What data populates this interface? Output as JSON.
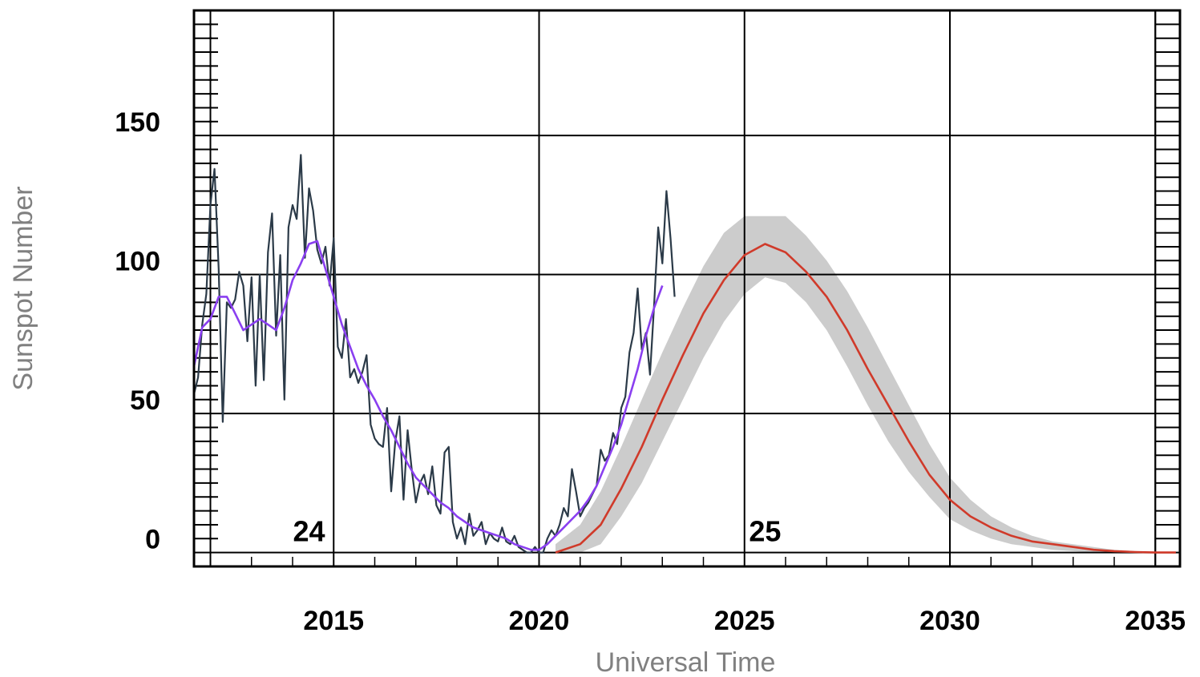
{
  "chart_data": {
    "type": "line",
    "title": "",
    "xlabel": "Universal Time",
    "ylabel": "Sunspot Number",
    "xlim": [
      2011.6,
      2035.6
    ],
    "ylim": [
      -5,
      195
    ],
    "x_ticks": [
      2015,
      2020,
      2025,
      2030,
      2035
    ],
    "y_ticks": [
      0,
      50,
      100,
      150
    ],
    "grid": true,
    "cycle_labels": [
      {
        "text": "24",
        "x": 2014.4,
        "y": 7
      },
      {
        "text": "25",
        "x": 2025.5,
        "y": 7
      }
    ],
    "colors": {
      "observed": "#2b3a48",
      "smoothed": "#8a3ff0",
      "predicted": "#d03a2a",
      "band": "#cccccc",
      "grid": "#000000"
    },
    "series": [
      {
        "key": "observed",
        "x": [
          2011.6,
          2011.7,
          2011.8,
          2011.9,
          2012.0,
          2012.1,
          2012.2,
          2012.3,
          2012.4,
          2012.5,
          2012.6,
          2012.7,
          2012.8,
          2012.9,
          2013.0,
          2013.1,
          2013.2,
          2013.3,
          2013.4,
          2013.5,
          2013.6,
          2013.7,
          2013.8,
          2013.9,
          2014.0,
          2014.1,
          2014.2,
          2014.3,
          2014.4,
          2014.5,
          2014.6,
          2014.7,
          2014.8,
          2014.9,
          2015.0,
          2015.1,
          2015.2,
          2015.3,
          2015.4,
          2015.5,
          2015.6,
          2015.7,
          2015.8,
          2015.9,
          2016.0,
          2016.1,
          2016.2,
          2016.3,
          2016.4,
          2016.5,
          2016.6,
          2016.7,
          2016.8,
          2016.9,
          2017.0,
          2017.1,
          2017.2,
          2017.3,
          2017.4,
          2017.5,
          2017.6,
          2017.7,
          2017.8,
          2017.9,
          2018.0,
          2018.1,
          2018.2,
          2018.3,
          2018.4,
          2018.5,
          2018.6,
          2018.7,
          2018.8,
          2018.9,
          2019.0,
          2019.1,
          2019.2,
          2019.3,
          2019.4,
          2019.5,
          2019.6,
          2019.7,
          2019.8,
          2019.9,
          2020.0,
          2020.1,
          2020.2,
          2020.3,
          2020.4,
          2020.5,
          2020.6,
          2020.7,
          2020.8,
          2020.9,
          2021.0,
          2021.1,
          2021.2,
          2021.3,
          2021.4,
          2021.5,
          2021.6,
          2021.7,
          2021.8,
          2021.9,
          2022.0,
          2022.1,
          2022.2,
          2022.3,
          2022.4,
          2022.5,
          2022.6,
          2022.7,
          2022.8,
          2022.9,
          2023.0,
          2023.1,
          2023.2,
          2023.3
        ],
        "y": [
          57,
          63,
          82,
          93,
          125,
          138,
          102,
          47,
          90,
          88,
          91,
          101,
          96,
          76,
          99,
          60,
          100,
          62,
          108,
          122,
          78,
          107,
          55,
          117,
          125,
          120,
          143,
          106,
          131,
          123,
          109,
          104,
          110,
          96,
          113,
          74,
          70,
          84,
          63,
          66,
          61,
          65,
          71,
          46,
          41,
          39,
          38,
          52,
          22,
          40,
          49,
          19,
          44,
          30,
          18,
          25,
          28,
          21,
          31,
          17,
          14,
          36,
          38,
          11,
          5,
          9,
          3,
          14,
          6,
          8,
          11,
          3,
          7,
          5,
          4,
          9,
          4,
          3,
          6,
          2,
          1,
          0,
          0,
          2,
          0,
          0,
          5,
          8,
          6,
          10,
          16,
          13,
          30,
          22,
          13,
          16,
          18,
          21,
          24,
          37,
          33,
          35,
          43,
          39,
          52,
          56,
          72,
          79,
          95,
          73,
          79,
          64,
          89,
          117,
          104,
          130,
          113,
          92
        ]
      },
      {
        "key": "smoothed",
        "x": [
          2011.6,
          2011.8,
          2012.0,
          2012.2,
          2012.4,
          2012.6,
          2012.8,
          2013.0,
          2013.2,
          2013.4,
          2013.6,
          2013.8,
          2014.0,
          2014.2,
          2014.4,
          2014.6,
          2014.8,
          2015.0,
          2015.2,
          2015.4,
          2015.6,
          2015.8,
          2016.0,
          2016.2,
          2016.4,
          2016.6,
          2016.8,
          2017.0,
          2017.2,
          2017.4,
          2017.6,
          2017.8,
          2018.0,
          2018.2,
          2018.4,
          2018.6,
          2018.8,
          2019.0,
          2019.2,
          2019.4,
          2019.6,
          2019.8,
          2020.0,
          2020.2,
          2020.4,
          2020.6,
          2020.8,
          2021.0,
          2021.2,
          2021.4,
          2021.6,
          2021.8,
          2022.0,
          2022.2,
          2022.4,
          2022.6,
          2022.8,
          2023.0
        ],
        "y": [
          67,
          81,
          84,
          92,
          92,
          86,
          80,
          82,
          84,
          82,
          80,
          88,
          98,
          104,
          111,
          112,
          102,
          92,
          82,
          74,
          66,
          60,
          55,
          49,
          44,
          38,
          32,
          27,
          24,
          21,
          18,
          16,
          13,
          11,
          9,
          8,
          7,
          6,
          5,
          3,
          2,
          1,
          1,
          3,
          6,
          9,
          12,
          15,
          19,
          24,
          31,
          38,
          46,
          56,
          66,
          78,
          88,
          96
        ]
      },
      {
        "key": "predicted",
        "x": [
          2020.4,
          2021.0,
          2021.5,
          2022.0,
          2022.5,
          2023.0,
          2023.5,
          2024.0,
          2024.5,
          2025.0,
          2025.5,
          2026.0,
          2026.5,
          2027.0,
          2027.5,
          2028.0,
          2028.5,
          2029.0,
          2029.5,
          2030.0,
          2030.5,
          2031.0,
          2031.5,
          2032.0,
          2032.5,
          2033.0,
          2033.5,
          2034.0,
          2034.5,
          2035.0,
          2035.5
        ],
        "y": [
          0,
          3,
          10,
          23,
          38,
          55,
          71,
          86,
          98,
          107,
          111,
          108,
          101,
          92,
          80,
          66,
          53,
          40,
          28,
          19,
          13,
          9,
          6,
          4,
          3,
          2,
          1,
          0.5,
          0.2,
          0,
          0
        ]
      }
    ],
    "band": {
      "x": [
        2020.4,
        2021.0,
        2021.5,
        2022.0,
        2022.5,
        2023.0,
        2023.5,
        2024.0,
        2024.5,
        2025.0,
        2025.5,
        2026.0,
        2026.5,
        2027.0,
        2027.5,
        2028.0,
        2028.5,
        2029.0,
        2029.5,
        2030.0,
        2030.5,
        2031.0,
        2031.5,
        2032.0,
        2032.5,
        2033.0,
        2033.5,
        2034.0,
        2034.5,
        2035.0,
        2035.5
      ],
      "upper": [
        3,
        10,
        22,
        38,
        55,
        72,
        88,
        103,
        115,
        121,
        121,
        121,
        114,
        105,
        94,
        81,
        67,
        53,
        39,
        27,
        19,
        13,
        9,
        6,
        4,
        3,
        2,
        1,
        0.5,
        0,
        0
      ],
      "lower": [
        0,
        0,
        3,
        13,
        25,
        40,
        55,
        70,
        83,
        93,
        99,
        97,
        90,
        80,
        67,
        53,
        40,
        29,
        20,
        12,
        8,
        5,
        3,
        2,
        1,
        0.5,
        0,
        0,
        0,
        0,
        0
      ]
    }
  }
}
